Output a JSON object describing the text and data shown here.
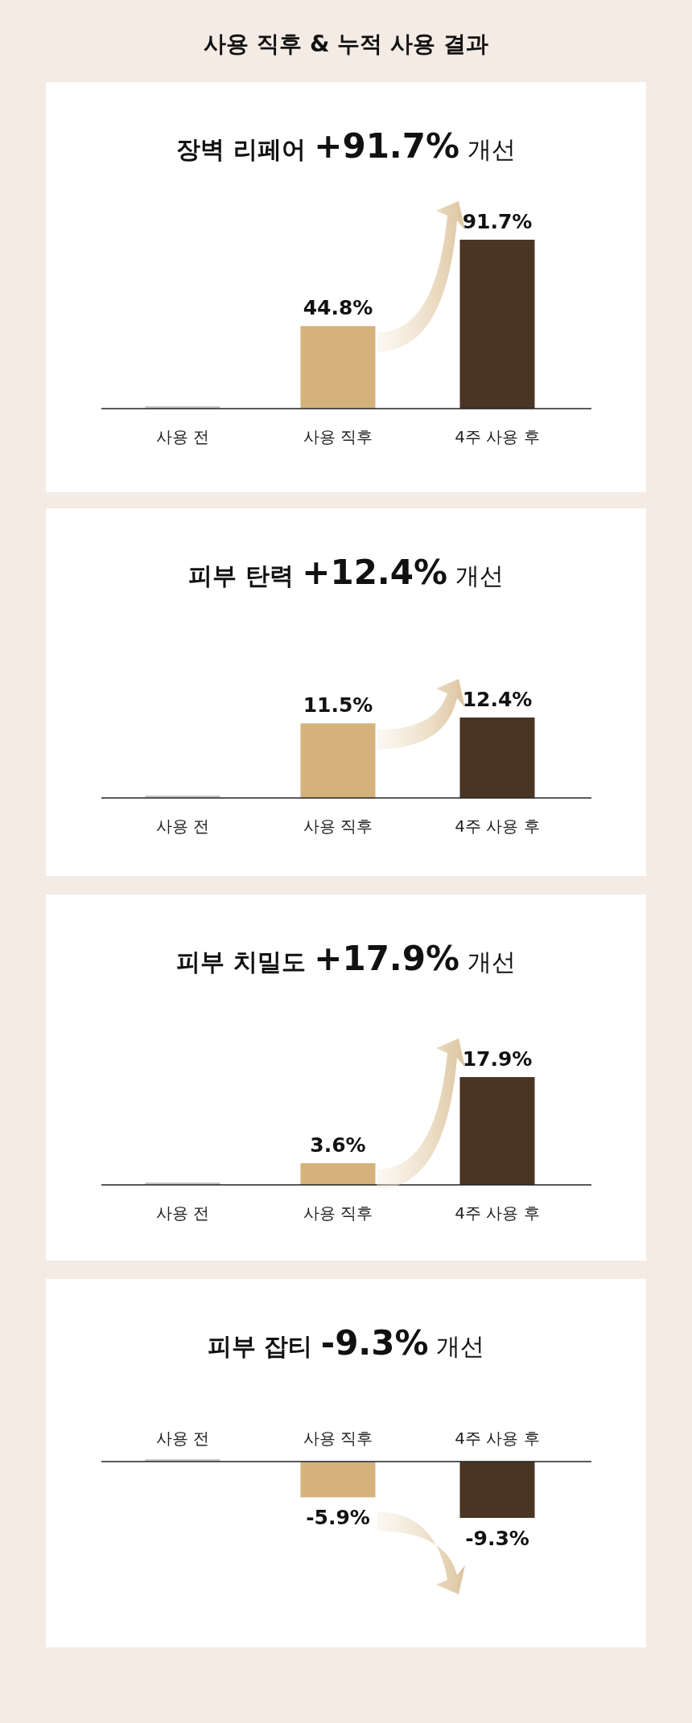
{
  "chart_data": [
    {
      "type": "other",
      "title": "사용 직후 & 누적 사용 결과"
    },
    {
      "type": "bar",
      "title": "장벽 리페어 +91.7% 개선",
      "categories": [
        "사용 전",
        "사용 직후",
        "4주 사용 후"
      ],
      "values": [
        0,
        44.8,
        91.7
      ],
      "colors": [
        "#c9c9c9",
        "#d5b27c",
        "#4a3525"
      ],
      "value_labels": [
        null,
        "44.8%",
        "91.7%"
      ]
    },
    {
      "type": "bar",
      "title": "피부 탄력 +12.4% 개선",
      "categories": [
        "사용 전",
        "사용 직후",
        "4주 사용 후"
      ],
      "values": [
        0,
        11.5,
        12.4
      ],
      "colors": [
        "#c9c9c9",
        "#d5b27c",
        "#4a3525"
      ],
      "value_labels": [
        null,
        "11.5%",
        "12.4%"
      ]
    },
    {
      "type": "bar",
      "title": "피부 치밀도 +17.9% 개선",
      "categories": [
        "사용 전",
        "사용 직후",
        "4주 사용 후"
      ],
      "values": [
        0,
        3.6,
        17.9
      ],
      "colors": [
        "#c9c9c9",
        "#d5b27c",
        "#4a3525"
      ],
      "value_labels": [
        null,
        "3.6%",
        "17.9%"
      ]
    },
    {
      "type": "bar",
      "title": "피부 잡티 -9.3% 개선",
      "categories": [
        "사용 전",
        "사용 직후",
        "4주 사용 후"
      ],
      "values": [
        0,
        -5.9,
        -9.3
      ],
      "colors": [
        "#c9c9c9",
        "#d5b27c",
        "#4a3525"
      ],
      "value_labels": [
        null,
        "-5.9%",
        "-9.3%"
      ]
    }
  ]
}
